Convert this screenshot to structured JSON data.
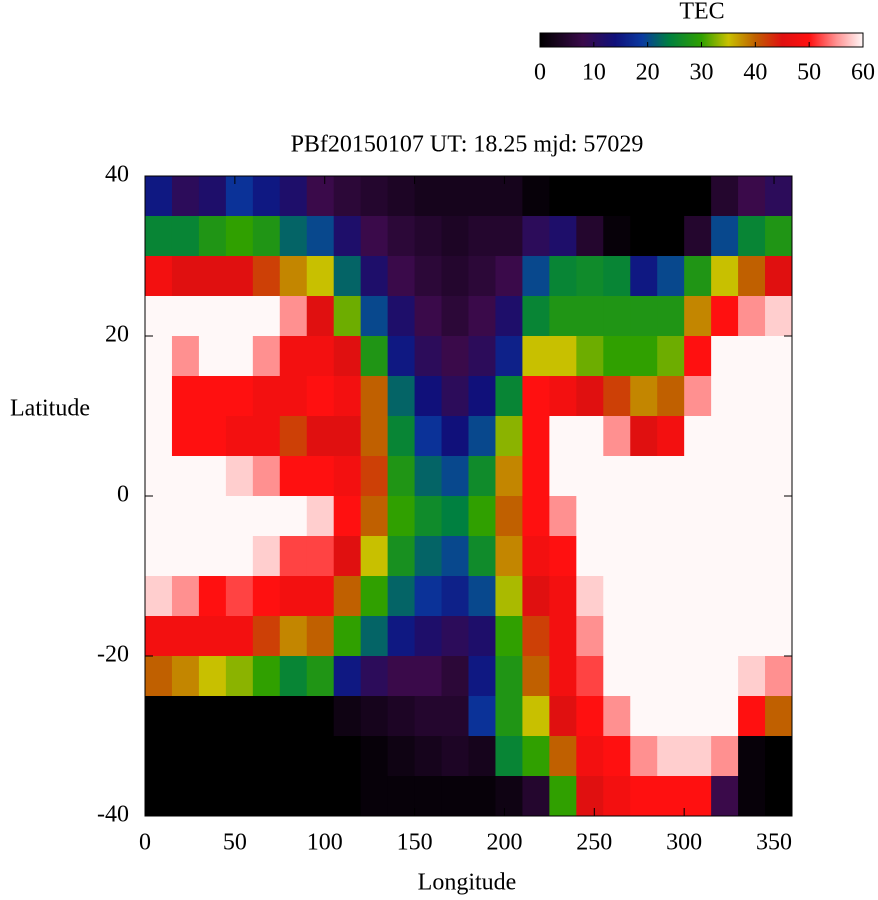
{
  "chart_data": {
    "type": "heatmap",
    "title": "PBf20150107  UT: 18.25  mjd: 57029",
    "xlabel": "Longitude",
    "ylabel": "Latitude",
    "colorbar_label": "TEC",
    "xlim": [
      0,
      360
    ],
    "ylim": [
      -40,
      40
    ],
    "xticks": [
      0,
      50,
      100,
      150,
      200,
      250,
      300,
      350
    ],
    "yticks": [
      -40,
      -20,
      0,
      20,
      40
    ],
    "clim": [
      0,
      60
    ],
    "cticks": [
      0,
      10,
      20,
      30,
      40,
      50,
      60
    ],
    "colormap": [
      {
        "value": 0,
        "color": "#000000"
      },
      {
        "value": 8,
        "color": "#3a0a4a"
      },
      {
        "value": 14,
        "color": "#10107a"
      },
      {
        "value": 19,
        "color": "#0a3aa0"
      },
      {
        "value": 24,
        "color": "#008040"
      },
      {
        "value": 30,
        "color": "#30a000"
      },
      {
        "value": 35,
        "color": "#c8c000"
      },
      {
        "value": 40,
        "color": "#c06000"
      },
      {
        "value": 45,
        "color": "#e01010"
      },
      {
        "value": 50,
        "color": "#ff1010"
      },
      {
        "value": 55,
        "color": "#ff9090"
      },
      {
        "value": 60,
        "color": "#fff8f8"
      }
    ],
    "x": [
      7.5,
      22.5,
      37.5,
      52.5,
      67.5,
      82.5,
      97.5,
      112.5,
      127.5,
      142.5,
      157.5,
      172.5,
      187.5,
      202.5,
      217.5,
      232.5,
      247.5,
      262.5,
      277.5,
      292.5,
      307.5,
      322.5,
      337.5,
      352.5
    ],
    "y": [
      37.5,
      32.5,
      27.5,
      22.5,
      17.5,
      12.5,
      7.5,
      2.5,
      -2.5,
      -7.5,
      -12.5,
      -17.5,
      -22.5,
      -27.5,
      -32.5,
      -37.5
    ],
    "values": [
      [
        15,
        10,
        12,
        18,
        15,
        12,
        8,
        6,
        5,
        4,
        3,
        3,
        3,
        3,
        1,
        0,
        0,
        0,
        0,
        0,
        0,
        5,
        8,
        10
      ],
      [
        25,
        25,
        28,
        30,
        28,
        22,
        20,
        12,
        8,
        6,
        5,
        4,
        5,
        5,
        10,
        12,
        5,
        1,
        0,
        0,
        5,
        20,
        25,
        28
      ],
      [
        48,
        45,
        45,
        45,
        42,
        38,
        35,
        22,
        12,
        8,
        6,
        5,
        6,
        8,
        20,
        25,
        26,
        25,
        15,
        20,
        28,
        35,
        40,
        45
      ],
      [
        60,
        60,
        60,
        60,
        60,
        55,
        45,
        32,
        20,
        12,
        8,
        6,
        8,
        12,
        25,
        28,
        28,
        28,
        28,
        28,
        38,
        50,
        55,
        58
      ],
      [
        60,
        55,
        60,
        60,
        55,
        48,
        48,
        45,
        28,
        15,
        10,
        8,
        10,
        16,
        35,
        35,
        32,
        30,
        30,
        32,
        50,
        60,
        60,
        60
      ],
      [
        60,
        50,
        50,
        50,
        48,
        48,
        50,
        48,
        40,
        22,
        14,
        10,
        14,
        25,
        50,
        48,
        45,
        42,
        38,
        40,
        55,
        60,
        60,
        60
      ],
      [
        60,
        50,
        50,
        48,
        48,
        42,
        45,
        45,
        40,
        25,
        18,
        14,
        20,
        33,
        50,
        60,
        60,
        55,
        45,
        48,
        60,
        60,
        60,
        60
      ],
      [
        60,
        60,
        60,
        58,
        55,
        50,
        50,
        48,
        42,
        28,
        22,
        20,
        26,
        38,
        50,
        60,
        60,
        60,
        60,
        60,
        60,
        60,
        60,
        60
      ],
      [
        60,
        60,
        60,
        60,
        60,
        60,
        58,
        50,
        40,
        30,
        26,
        24,
        30,
        40,
        50,
        55,
        60,
        60,
        60,
        60,
        60,
        60,
        60,
        60
      ],
      [
        60,
        60,
        60,
        60,
        58,
        52,
        52,
        45,
        35,
        27,
        22,
        20,
        26,
        38,
        48,
        50,
        60,
        60,
        60,
        60,
        60,
        60,
        60,
        60
      ],
      [
        58,
        55,
        50,
        52,
        50,
        48,
        48,
        40,
        30,
        22,
        18,
        16,
        20,
        34,
        45,
        48,
        58,
        60,
        60,
        60,
        60,
        60,
        60,
        60
      ],
      [
        48,
        48,
        48,
        48,
        42,
        38,
        40,
        30,
        22,
        15,
        12,
        10,
        12,
        30,
        42,
        48,
        55,
        60,
        60,
        60,
        60,
        60,
        60,
        60
      ],
      [
        40,
        38,
        35,
        33,
        30,
        25,
        28,
        15,
        10,
        8,
        8,
        6,
        15,
        28,
        40,
        48,
        52,
        60,
        60,
        60,
        60,
        60,
        58,
        55
      ],
      [
        0,
        0,
        0,
        0,
        0,
        0,
        0,
        2,
        3,
        4,
        5,
        5,
        18,
        28,
        35,
        45,
        50,
        55,
        60,
        60,
        60,
        60,
        50,
        40
      ],
      [
        0,
        0,
        0,
        0,
        0,
        0,
        0,
        0,
        1,
        2,
        3,
        4,
        3,
        25,
        30,
        40,
        48,
        50,
        55,
        58,
        58,
        55,
        1,
        0
      ],
      [
        0,
        0,
        0,
        0,
        0,
        0,
        0,
        0,
        1,
        1,
        1,
        1,
        1,
        2,
        5,
        30,
        45,
        48,
        50,
        50,
        50,
        8,
        1,
        0
      ]
    ]
  }
}
